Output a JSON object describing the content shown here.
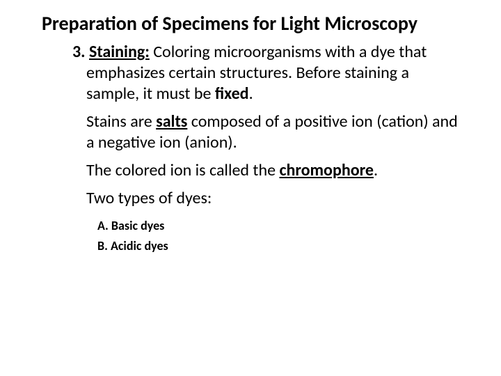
{
  "title": "Preparation of Specimens for Light Microscopy",
  "item_number": "3. ",
  "staining_label": "Staining:",
  "staining_def_1": " Coloring microorganisms with a dye that emphasizes certain structures.  Before staining a sample, it must be ",
  "fixed_word": "fixed",
  "period": ".",
  "salts_pre": "Stains are ",
  "salts_word": "salts",
  "salts_post": " composed of a positive ion (cation) and a negative ion (anion).",
  "chromo_pre": "The colored ion is called the ",
  "chromo_word": "chromophore",
  "two_types": "Two types of dyes:",
  "dye_a": "A. Basic dyes",
  "dye_b": "B. Acidic dyes"
}
